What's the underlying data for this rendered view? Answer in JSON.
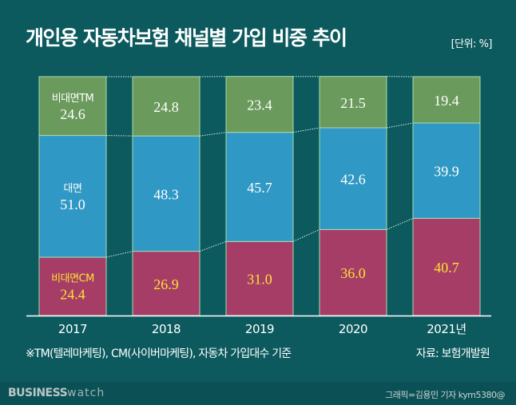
{
  "title": "개인용 자동차보험 채널별 가입 비중 추이",
  "unit": "[단위: %]",
  "note": "※TM(텔레마케팅), CM(사이버마케팅), 자동차 가입대수 기준",
  "source": "자료: 보험개발원",
  "footer": {
    "logo_bold": "BUSINESS",
    "logo_light": "watch",
    "credit": "그래픽=김용민 기자 kym5380@"
  },
  "colors": {
    "background": "#0c5a5e",
    "tm": "#6a9a5c",
    "face": "#2f98c4",
    "cm": "#a53d66",
    "cm_text": "#ffe033"
  },
  "chart_data": {
    "type": "bar",
    "stacked": true,
    "categories": [
      "2017",
      "2018",
      "2019",
      "2020",
      "2021년"
    ],
    "series": [
      {
        "name": "비대면CM",
        "values": [
          24.4,
          26.9,
          31.0,
          36.0,
          40.7
        ]
      },
      {
        "name": "대면",
        "values": [
          51.0,
          48.3,
          45.7,
          42.6,
          39.9
        ]
      },
      {
        "name": "비대면TM",
        "values": [
          24.6,
          24.8,
          23.4,
          21.5,
          19.4
        ]
      }
    ],
    "ylim": [
      0,
      100
    ],
    "grid": false
  }
}
